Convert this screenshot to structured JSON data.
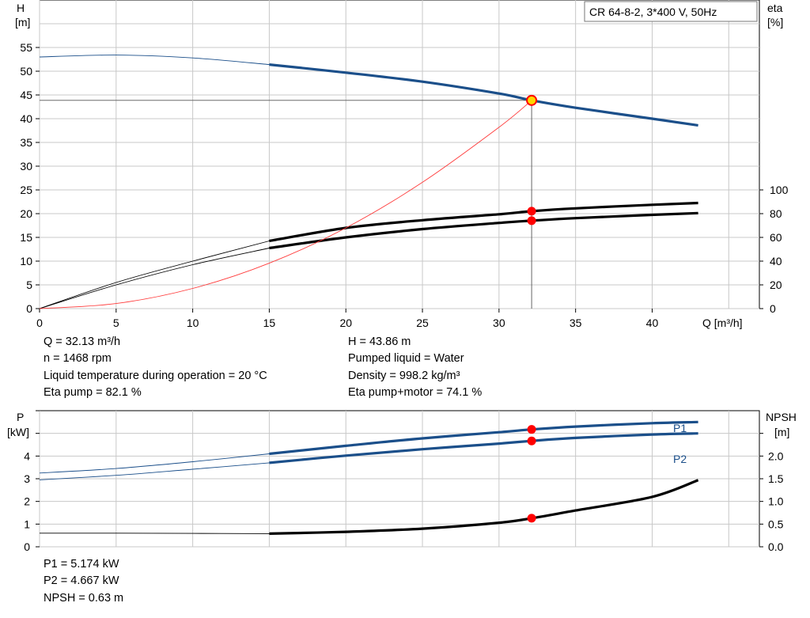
{
  "title_box": "CR 64-8-2, 3*400 V, 50Hz",
  "colors": {
    "curve_blue": "#1b4f8a",
    "curve_black": "#000000",
    "system_curve": "#ff3b3b",
    "operating_point": "#ff0000",
    "duty_marker_fill": "#ffd800",
    "grid": "#c8c8c8"
  },
  "top_info": {
    "left": [
      "Q = 32.13 m³/h",
      "n = 1468 rpm",
      "Liquid temperature during operation = 20 °C",
      "Eta pump = 82.1 %"
    ],
    "right": [
      "H = 43.86 m",
      "Pumped liquid = Water",
      "Density = 998.2 kg/m³",
      "Eta pump+motor = 74.1 %"
    ]
  },
  "bottom_info": [
    "P1 = 5.174 kW",
    "P2 = 4.667 kW",
    "NPSH = 0.63 m"
  ],
  "chart_data": [
    {
      "type": "line",
      "x_label": "Q [m³/h]",
      "y_label": [
        "H",
        "[m]"
      ],
      "y2_label": [
        "eta",
        "[%]"
      ],
      "xlim": [
        0,
        47
      ],
      "ylim": [
        0,
        65
      ],
      "y2lim": [
        0,
        260
      ],
      "xticks": [
        0,
        5,
        10,
        15,
        20,
        25,
        30,
        35,
        40
      ],
      "yticks": [
        0,
        5,
        10,
        15,
        20,
        25,
        30,
        35,
        40,
        45,
        50,
        55
      ],
      "y2ticks": [
        0,
        20,
        40,
        60,
        80,
        100
      ],
      "grid": true,
      "duty_point": {
        "q": 32.13,
        "h": 43.86,
        "eta_pump": 82.1,
        "eta_total": 74.1
      },
      "series": [
        {
          "key": "H",
          "axis": "left",
          "color": "#1b4f8a",
          "thin": [
            [
              0,
              53.0
            ],
            [
              5,
              53.4
            ],
            [
              10,
              52.8
            ],
            [
              15,
              51.4
            ]
          ],
          "thick": [
            [
              15,
              51.4
            ],
            [
              20,
              49.7
            ],
            [
              25,
              47.8
            ],
            [
              30,
              45.3
            ],
            [
              32.13,
              43.86
            ],
            [
              35,
              42.3
            ],
            [
              40,
              40.0
            ],
            [
              43,
              38.6
            ]
          ]
        },
        {
          "key": "eta_pump",
          "axis": "right",
          "color": "#000000",
          "thin": [
            [
              0,
              0
            ],
            [
              5,
              22
            ],
            [
              10,
              40
            ],
            [
              15,
              57
            ]
          ],
          "thick": [
            [
              15,
              57
            ],
            [
              20,
              68
            ],
            [
              25,
              74.5
            ],
            [
              30,
              79.5
            ],
            [
              32.13,
              82.1
            ],
            [
              35,
              84.5
            ],
            [
              40,
              87.5
            ],
            [
              43,
              89
            ]
          ]
        },
        {
          "key": "eta_total",
          "axis": "right",
          "color": "#000000",
          "thin": [
            [
              0,
              0
            ],
            [
              5,
              20
            ],
            [
              10,
              37
            ],
            [
              15,
              51
            ]
          ],
          "thick": [
            [
              15,
              51
            ],
            [
              20,
              60
            ],
            [
              25,
              67
            ],
            [
              30,
              72.2
            ],
            [
              32.13,
              74.1
            ],
            [
              35,
              76.2
            ],
            [
              40,
              79
            ],
            [
              43,
              80.5
            ]
          ]
        },
        {
          "key": "system",
          "axis": "left",
          "color": "#ff3b3b",
          "thin": [
            [
              0,
              0
            ],
            [
              5,
              1.06
            ],
            [
              10,
              4.25
            ],
            [
              15,
              9.56
            ],
            [
              20,
              17.0
            ],
            [
              25,
              26.6
            ],
            [
              30,
              38.2
            ],
            [
              32.13,
              43.86
            ]
          ],
          "thick": []
        }
      ]
    },
    {
      "type": "line",
      "y_label": [
        "P",
        "[kW]"
      ],
      "y2_label": [
        "NPSH",
        "[m]"
      ],
      "xlim": [
        0,
        47
      ],
      "ylim": [
        0,
        6
      ],
      "y2lim": [
        0,
        3.0
      ],
      "yticks": [
        0,
        1,
        2,
        3,
        4
      ],
      "y2ticks": [
        0.0,
        0.5,
        1.0,
        1.5,
        2.0
      ],
      "grid": true,
      "series": [
        {
          "key": "P1",
          "name": "P1",
          "axis": "left",
          "color": "#1b4f8a",
          "thin": [
            [
              0,
              3.25
            ],
            [
              5,
              3.45
            ],
            [
              10,
              3.75
            ],
            [
              15,
              4.1
            ]
          ],
          "thick": [
            [
              15,
              4.1
            ],
            [
              20,
              4.45
            ],
            [
              25,
              4.78
            ],
            [
              30,
              5.05
            ],
            [
              32.13,
              5.174
            ],
            [
              35,
              5.3
            ],
            [
              40,
              5.45
            ],
            [
              43,
              5.5
            ]
          ]
        },
        {
          "key": "P2",
          "name": "P2",
          "axis": "left",
          "color": "#1b4f8a",
          "thin": [
            [
              0,
              2.95
            ],
            [
              5,
              3.15
            ],
            [
              10,
              3.42
            ],
            [
              15,
              3.7
            ]
          ],
          "thick": [
            [
              15,
              3.7
            ],
            [
              20,
              4.02
            ],
            [
              25,
              4.3
            ],
            [
              30,
              4.55
            ],
            [
              32.13,
              4.667
            ],
            [
              35,
              4.8
            ],
            [
              40,
              4.95
            ],
            [
              43,
              5.0
            ]
          ]
        },
        {
          "key": "NPSH",
          "axis": "right",
          "color": "#000000",
          "thin": [
            [
              0,
              0.3
            ],
            [
              5,
              0.3
            ],
            [
              10,
              0.295
            ],
            [
              15,
              0.29
            ]
          ],
          "thick": [
            [
              15,
              0.29
            ],
            [
              20,
              0.33
            ],
            [
              25,
              0.4
            ],
            [
              30,
              0.53
            ],
            [
              32.13,
              0.63
            ],
            [
              35,
              0.8
            ],
            [
              40,
              1.1
            ],
            [
              43,
              1.47
            ]
          ]
        }
      ]
    }
  ]
}
